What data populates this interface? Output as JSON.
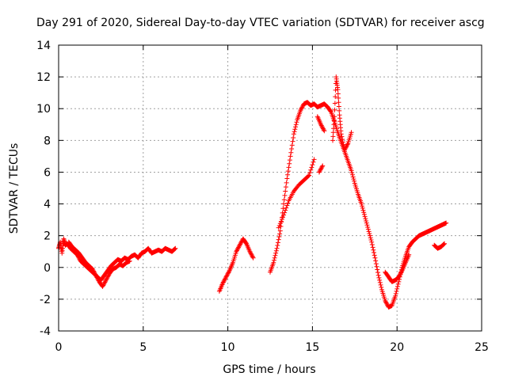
{
  "chart_data": {
    "type": "scatter",
    "title": "Day 291 of 2020, Sidereal Day-to-day VTEC variation (SDTVAR) for receiver ascg",
    "xlabel": "GPS time / hours",
    "ylabel": "SDTVAR / TECUs",
    "xlim": [
      0,
      25
    ],
    "ylim": [
      -4,
      14
    ],
    "xticks": [
      0,
      5,
      10,
      15,
      20,
      25
    ],
    "yticks": [
      -4,
      -2,
      0,
      2,
      4,
      6,
      8,
      10,
      12,
      14
    ],
    "xtick_labels": [
      "0",
      "5",
      "10",
      "15",
      "20",
      "25"
    ],
    "ytick_labels": [
      "-4",
      "-2",
      "0",
      "2",
      "4",
      "6",
      "8",
      "10",
      "12",
      "14"
    ],
    "grid": true,
    "marker": "+",
    "color": "#ff0000",
    "series": [
      {
        "name": "SDTVAR",
        "segments": [
          {
            "x": [
              0.0,
              0.1,
              0.2,
              0.3,
              0.4,
              0.5,
              0.7,
              0.9,
              1.1,
              1.3,
              1.5,
              1.7,
              1.9,
              2.1,
              2.3,
              2.5,
              2.7,
              2.9,
              3.1,
              3.3,
              3.5,
              3.7,
              3.9,
              4.1,
              4.3,
              4.5,
              4.7,
              4.9,
              5.1,
              5.3,
              5.5,
              5.7,
              5.9,
              6.1,
              6.3,
              6.5,
              6.7,
              6.9
            ],
            "y": [
              1.2,
              1.6,
              0.9,
              1.8,
              1.4,
              1.5,
              1.2,
              1.0,
              0.8,
              0.4,
              0.2,
              0.0,
              -0.2,
              -0.4,
              -0.6,
              -0.8,
              -0.5,
              -0.2,
              0.1,
              0.3,
              0.5,
              0.4,
              0.6,
              0.5,
              0.7,
              0.8,
              0.6,
              0.9,
              1.0,
              1.2,
              0.9,
              1.0,
              1.1,
              1.0,
              1.2,
              1.1,
              1.0,
              1.2
            ]
          },
          {
            "x": [
              0.6,
              0.8,
              1.0,
              1.2,
              1.4,
              1.6,
              1.8,
              2.0,
              2.2,
              2.4,
              2.6,
              2.8,
              3.0,
              3.2,
              3.4,
              3.6,
              3.8,
              4.0,
              4.2
            ],
            "y": [
              1.6,
              1.3,
              1.1,
              0.9,
              0.6,
              0.3,
              0.1,
              -0.1,
              -0.5,
              -0.9,
              -1.2,
              -0.8,
              -0.4,
              -0.1,
              0.0,
              0.2,
              0.1,
              0.3,
              0.4
            ]
          },
          {
            "x": [
              9.5,
              9.7,
              9.9,
              10.1,
              10.3,
              10.5,
              10.7,
              10.9,
              11.1,
              11.3,
              11.5
            ],
            "y": [
              -1.5,
              -1.0,
              -0.6,
              -0.2,
              0.3,
              1.0,
              1.4,
              1.8,
              1.5,
              1.0,
              0.6
            ]
          },
          {
            "x": [
              12.5,
              12.7,
              12.9,
              13.1,
              13.3,
              13.5,
              13.7,
              13.9,
              14.1,
              14.3,
              14.5,
              14.7,
              14.9,
              15.1,
              15.3,
              15.5,
              15.7,
              15.9,
              16.1,
              16.3,
              16.5,
              16.7,
              16.9,
              17.1,
              17.3,
              17.5,
              17.7,
              17.9,
              18.1,
              18.3,
              18.5,
              18.7,
              18.9,
              19.1,
              19.3,
              19.5,
              19.7,
              19.9,
              20.1,
              20.3,
              20.5,
              20.7,
              20.9,
              21.1,
              21.3,
              21.5,
              21.7,
              21.9,
              22.1,
              22.3,
              22.5,
              22.7,
              22.9
            ],
            "y": [
              -0.3,
              0.3,
              1.2,
              2.3,
              4.0,
              5.6,
              7.0,
              8.4,
              9.3,
              9.9,
              10.3,
              10.4,
              10.2,
              10.3,
              10.1,
              10.2,
              10.3,
              10.1,
              9.8,
              9.2,
              8.5,
              7.9,
              7.3,
              6.7,
              6.1,
              5.3,
              4.6,
              4.0,
              3.2,
              2.4,
              1.6,
              0.6,
              -0.5,
              -1.4,
              -2.1,
              -2.5,
              -2.4,
              -1.8,
              -0.9,
              0.0,
              0.7,
              1.3,
              1.6,
              1.8,
              2.0,
              2.1,
              2.2,
              2.3,
              2.4,
              2.5,
              2.6,
              2.7,
              2.8
            ]
          },
          {
            "x": [
              13.0,
              13.3,
              13.6,
              13.9,
              14.2,
              14.5,
              14.8,
              15.1
            ],
            "y": [
              2.5,
              3.3,
              4.2,
              4.8,
              5.2,
              5.5,
              5.8,
              6.8
            ]
          },
          {
            "x": [
              15.3,
              15.5,
              15.7
            ],
            "y": [
              9.5,
              9.0,
              8.6
            ]
          },
          {
            "x": [
              15.4,
              15.6
            ],
            "y": [
              6.0,
              6.4
            ]
          },
          {
            "x": [
              16.2,
              16.3,
              16.4,
              16.5,
              16.6,
              16.7,
              16.9,
              17.1,
              17.3
            ],
            "y": [
              8.0,
              9.5,
              12.0,
              11.2,
              9.6,
              8.4,
              7.4,
              7.8,
              8.5
            ]
          },
          {
            "x": [
              19.3,
              19.5,
              19.7,
              19.9,
              20.1,
              20.3,
              20.5,
              20.7
            ],
            "y": [
              -0.3,
              -0.6,
              -0.9,
              -0.8,
              -0.6,
              -0.2,
              0.3,
              0.8
            ]
          },
          {
            "x": [
              22.2,
              22.4,
              22.6,
              22.8
            ],
            "y": [
              1.4,
              1.2,
              1.3,
              1.5
            ]
          }
        ]
      }
    ]
  }
}
